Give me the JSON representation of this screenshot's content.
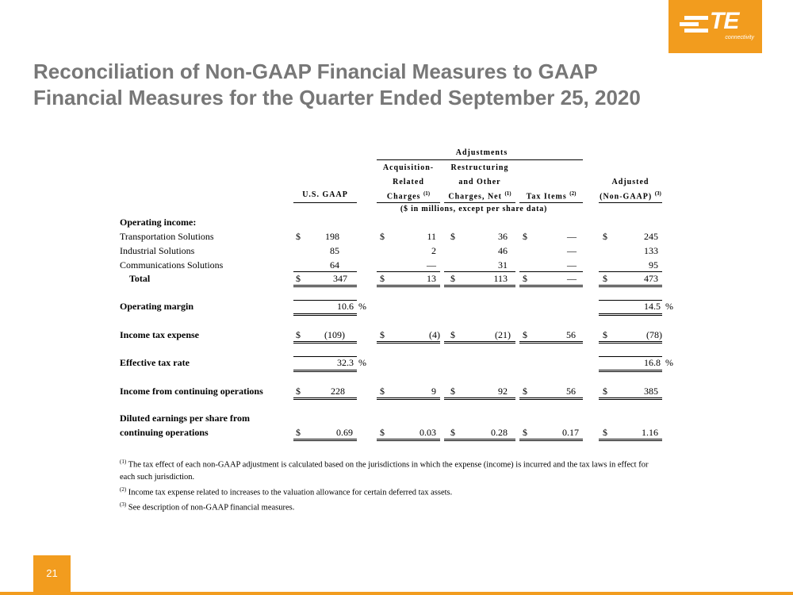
{
  "logo": {
    "text": "TE",
    "sub": "connectivity"
  },
  "title": {
    "line1": "Reconciliation of Non-GAAP Financial Measures to GAAP",
    "line2": "Financial Measures for the Quarter Ended September 25, 2020"
  },
  "headers": {
    "adjustments": "Adjustments",
    "acq_1": "Acquisition-",
    "acq_2": "Related",
    "acq_3": "Charges",
    "acq_sup": "(1)",
    "res_1": "Restructuring",
    "res_2": "and Other",
    "res_3": "Charges, Net",
    "res_sup": "(1)",
    "gaap": "U.S. GAAP",
    "tax": "Tax Items",
    "tax_sup": "(2)",
    "adj_1": "Adjusted",
    "adj_2": "(Non-GAAP)",
    "adj_sup": "(3)",
    "units": "($ in millions, except per share data)"
  },
  "labels": {
    "operating_income": "Operating income:",
    "transportation": "Transportation Solutions",
    "industrial": "Industrial Solutions",
    "communications": "Communications Solutions",
    "total": "Total",
    "operating_margin": "Operating margin",
    "income_tax": "Income tax expense",
    "effective_tax": "Effective tax rate",
    "income_cont": "Income from continuing operations",
    "eps_1": "Diluted earnings per share from",
    "eps_2": "continuing operations"
  },
  "symbols": {
    "dollar": "$",
    "percent": "%"
  },
  "rows": {
    "transportation": [
      "198",
      "11",
      "36",
      "—",
      "245"
    ],
    "industrial": [
      "85",
      "2",
      "46",
      "—",
      "133"
    ],
    "communications": [
      "64",
      "—",
      "31",
      "—",
      "95"
    ],
    "total": [
      "347",
      "13",
      "113",
      "—",
      "473"
    ],
    "operating_margin": [
      "10.6",
      "14.5"
    ],
    "income_tax": [
      "(109)",
      "(4)",
      "(21)",
      "56",
      "(78)"
    ],
    "effective_tax": [
      "32.3",
      "16.8"
    ],
    "income_cont": [
      "228",
      "9",
      "92",
      "56",
      "385"
    ],
    "eps": [
      "0.69",
      "0.03",
      "0.28",
      "0.17",
      "1.16"
    ]
  },
  "footnotes": {
    "f1_sup": "(1)",
    "f1": "The tax effect of each non-GAAP adjustment is calculated based on the jurisdictions in which the expense (income) is incurred and the tax laws in effect for each such jurisdiction.",
    "f2_sup": "(2)",
    "f2": "Income tax expense related to increases to the valuation allowance for certain deferred tax assets.",
    "f3_sup": "(3)",
    "f3": "See description of non-GAAP financial measures."
  },
  "page_number": "21",
  "colors": {
    "accent": "#f29c1e",
    "title": "#777777"
  }
}
